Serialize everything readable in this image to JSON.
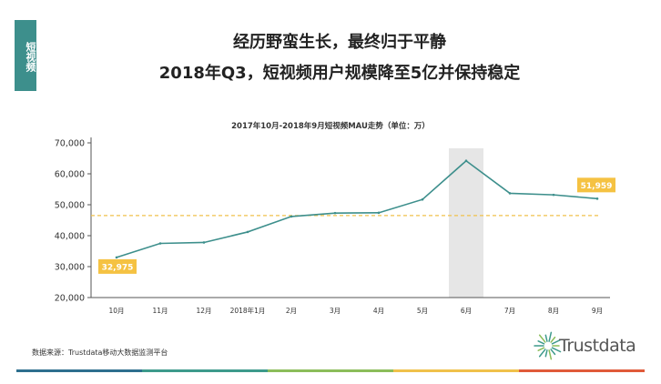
{
  "side_tab": {
    "label": "短视频"
  },
  "headline": {
    "line1": "经历野蛮生长，最终归于平静",
    "line2": "2018年Q3，短视频用户规模降至5亿并保持稳定"
  },
  "chart_data": {
    "type": "line",
    "title": "2017年10月-2018年9月短视频MAU走势（单位：万）",
    "categories": [
      "10月",
      "11月",
      "12月",
      "2018年1月",
      "2月",
      "3月",
      "4月",
      "5月",
      "6月",
      "7月",
      "8月",
      "9月"
    ],
    "series": [
      {
        "values": [
          32975,
          37500,
          37800,
          41200,
          46200,
          47300,
          47400,
          51700,
          64200,
          53700,
          53200,
          51959
        ]
      }
    ],
    "y_ticks": [
      "20,000",
      "30,000",
      "40,000",
      "50,000",
      "60,000",
      "70,000"
    ],
    "ylim": [
      20000,
      70000
    ],
    "reference_line": 46500,
    "highlight_category": "6月",
    "data_labels": [
      {
        "category": "10月",
        "text": "32,975"
      },
      {
        "category": "9月",
        "text": "51,959"
      }
    ],
    "colors": {
      "line": "#3d8f8c",
      "reference": "#f0c14b",
      "label_bg": "#f5c242",
      "highlight": "#e6e6e6"
    }
  },
  "footer": {
    "source": "数据来源：Trustdata移动大数据监测平台",
    "logo_text": "Trustdata",
    "bar_colors": [
      "#2e6f8e",
      "#3d9a8b",
      "#8bbd5a",
      "#f0c14b",
      "#e05a3a"
    ]
  }
}
